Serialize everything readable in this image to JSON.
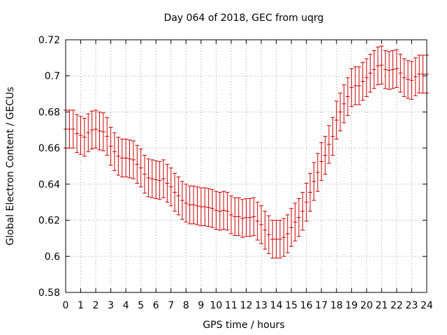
{
  "chart_data": {
    "type": "scatter",
    "title": "Day 064 of 2018, GEC from uqrg",
    "xlabel": "GPS time / hours",
    "ylabel": "Global Electron Content / GECUs",
    "xlim": [
      0,
      24
    ],
    "ylim": [
      0.58,
      0.72
    ],
    "x_ticks": [
      "0",
      "1",
      "2",
      "3",
      "4",
      "5",
      "6",
      "7",
      "8",
      "9",
      "10",
      "11",
      "12",
      "13",
      "14",
      "15",
      "16",
      "17",
      "18",
      "19",
      "20",
      "21",
      "22",
      "23",
      "24"
    ],
    "y_ticks": [
      "0.58",
      "0.6",
      "0.62",
      "0.64",
      "0.66",
      "0.68",
      "0.7",
      "0.72"
    ],
    "grid": true,
    "legend": "none",
    "color": "#cc0000",
    "error_bar": 0.0105,
    "series": [
      {
        "x": [
          0,
          0.25,
          0.5,
          0.75,
          1,
          1.25,
          1.5,
          1.75,
          2,
          2.25,
          2.5,
          2.75,
          3,
          3.25,
          3.5,
          3.75,
          4,
          4.25,
          4.5,
          4.75,
          5,
          5.25,
          5.5,
          5.75,
          6,
          6.25,
          6.5,
          6.75,
          7,
          7.25,
          7.5,
          7.75,
          8,
          8.25,
          8.5,
          8.75,
          9,
          9.25,
          9.5,
          9.75,
          10,
          10.25,
          10.5,
          10.75,
          11,
          11.25,
          11.5,
          11.75,
          12,
          12.25,
          12.5,
          12.75,
          13,
          13.25,
          13.5,
          13.75,
          14,
          14.25,
          14.5,
          14.75,
          15,
          15.25,
          15.5,
          15.75,
          16,
          16.25,
          16.5,
          16.75,
          17,
          17.25,
          17.5,
          17.75,
          18,
          18.25,
          18.5,
          18.75,
          19,
          19.25,
          19.5,
          19.75,
          20,
          20.25,
          20.5,
          20.75,
          21,
          21.25,
          21.5,
          21.75,
          22,
          22.25,
          22.5,
          22.75,
          23,
          23.25,
          23.5,
          23.75,
          24
        ],
        "y": [
          0.6705,
          0.6705,
          0.6705,
          0.668,
          0.667,
          0.666,
          0.6685,
          0.67,
          0.6705,
          0.6695,
          0.669,
          0.6665,
          0.661,
          0.658,
          0.6555,
          0.6545,
          0.6545,
          0.654,
          0.6535,
          0.651,
          0.649,
          0.6455,
          0.6435,
          0.643,
          0.6425,
          0.642,
          0.643,
          0.6405,
          0.6385,
          0.6355,
          0.6335,
          0.631,
          0.6295,
          0.6285,
          0.6285,
          0.628,
          0.6275,
          0.6275,
          0.627,
          0.6265,
          0.6255,
          0.625,
          0.6255,
          0.625,
          0.623,
          0.622,
          0.622,
          0.621,
          0.6215,
          0.6215,
          0.622,
          0.6195,
          0.6175,
          0.6145,
          0.612,
          0.6095,
          0.6095,
          0.6095,
          0.6105,
          0.6125,
          0.616,
          0.619,
          0.6215,
          0.625,
          0.63,
          0.6355,
          0.6415,
          0.6465,
          0.6525,
          0.656,
          0.662,
          0.6665,
          0.6755,
          0.68,
          0.6845,
          0.6885,
          0.6935,
          0.6945,
          0.6945,
          0.697,
          0.699,
          0.7015,
          0.7035,
          0.7055,
          0.706,
          0.7035,
          0.703,
          0.7035,
          0.704,
          0.7015,
          0.699,
          0.698,
          0.6975,
          0.6995,
          0.701,
          0.701,
          0.701
        ]
      }
    ]
  }
}
